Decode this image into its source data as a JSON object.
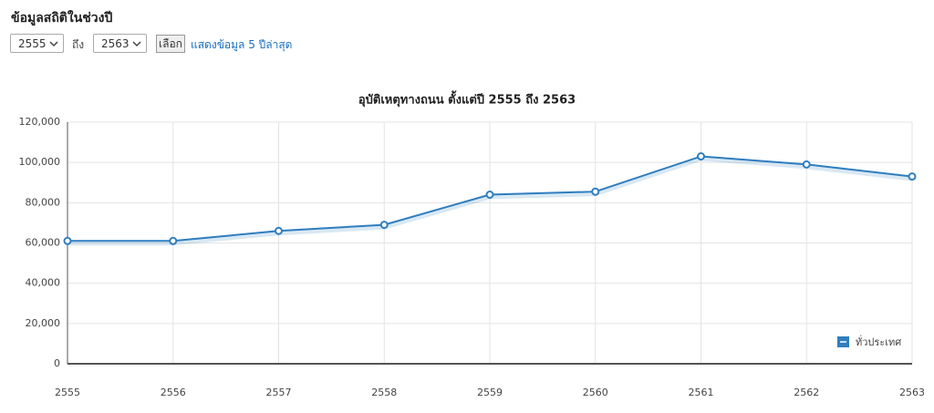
{
  "header": {
    "title": "ข้อมูลสถิติในช่วงปี"
  },
  "controls": {
    "from_year": "2555",
    "to_label": "ถึง",
    "to_year": "2563",
    "button": "เลือก",
    "link": "แสดงข้อมูล 5 ปีล่าสุด"
  },
  "chart_data": {
    "type": "line",
    "title": "อุบัติเหตุทางถนน ตั้งแต่ปี 2555 ถึง 2563",
    "categories": [
      "2555",
      "2556",
      "2557",
      "2558",
      "2559",
      "2560",
      "2561",
      "2562",
      "2563"
    ],
    "series": [
      {
        "name": "ทั่วประเทศ",
        "color": "#2f7ebf",
        "values": [
          61000,
          61000,
          66000,
          69000,
          84000,
          85500,
          103000,
          99000,
          93000
        ]
      }
    ],
    "ylim": [
      0,
      120000
    ],
    "yticks": [
      0,
      {
        "value": 20000,
        "label": "20,000"
      },
      {
        "value": 40000,
        "label": "40,000"
      },
      {
        "value": 60000,
        "label": "60,000"
      },
      {
        "value": 80000,
        "label": "80,000"
      },
      {
        "value": 100000,
        "label": "100,000"
      },
      {
        "value": 120000,
        "label": "120,000"
      }
    ],
    "grid": true,
    "legend": "bottom-right"
  }
}
